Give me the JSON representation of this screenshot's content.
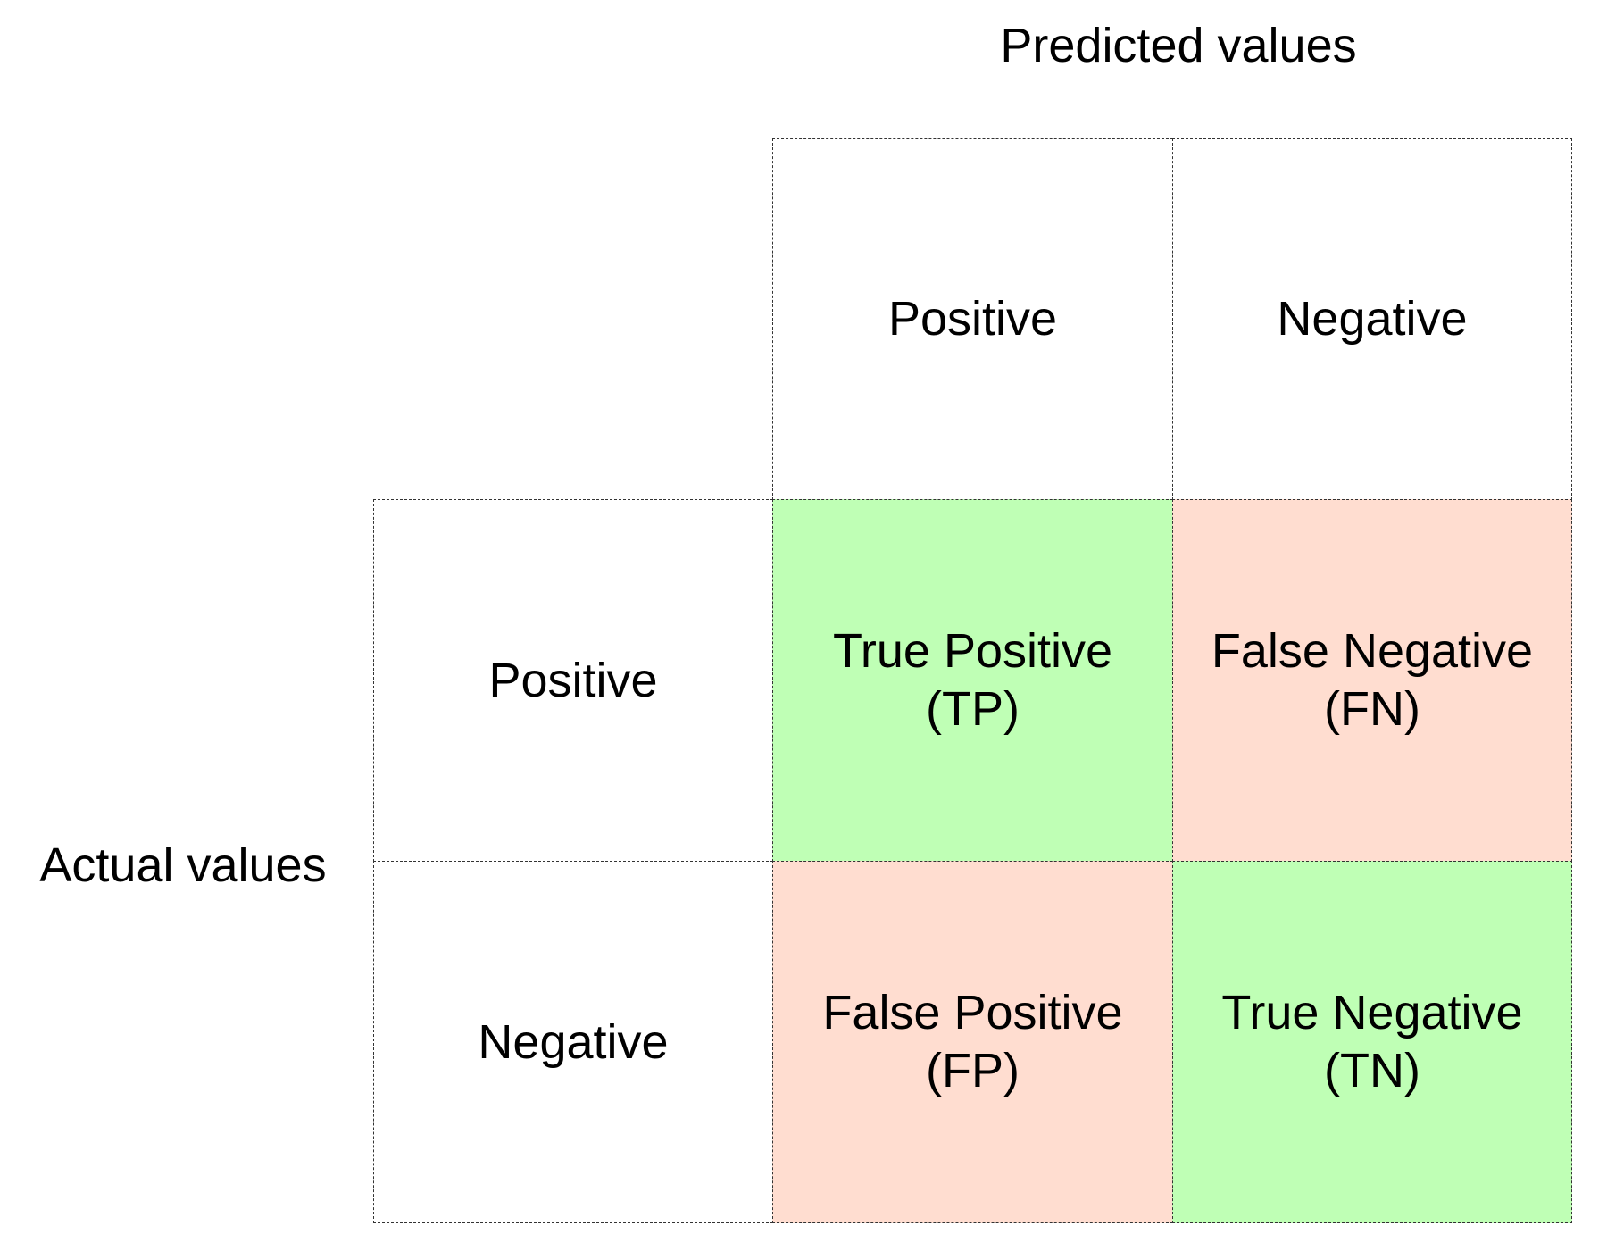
{
  "predicted_title": "Predicted values",
  "actual_title": "Actual values",
  "columns": {
    "positive": "Positive",
    "negative": "Negative"
  },
  "rows": {
    "positive": "Positive",
    "negative": "Negative"
  },
  "cells": {
    "tp": {
      "name": "True Positive",
      "abbr": "(TP)"
    },
    "fn": {
      "name": "False Negative",
      "abbr": "(FN)"
    },
    "fp": {
      "name": "False Positive",
      "abbr": "(FP)"
    },
    "tn": {
      "name": "True Negative",
      "abbr": "(TN)"
    }
  },
  "colors": {
    "true_cell": "#bfffb5",
    "false_cell": "#ffddd0",
    "grid_line": "#333333"
  }
}
